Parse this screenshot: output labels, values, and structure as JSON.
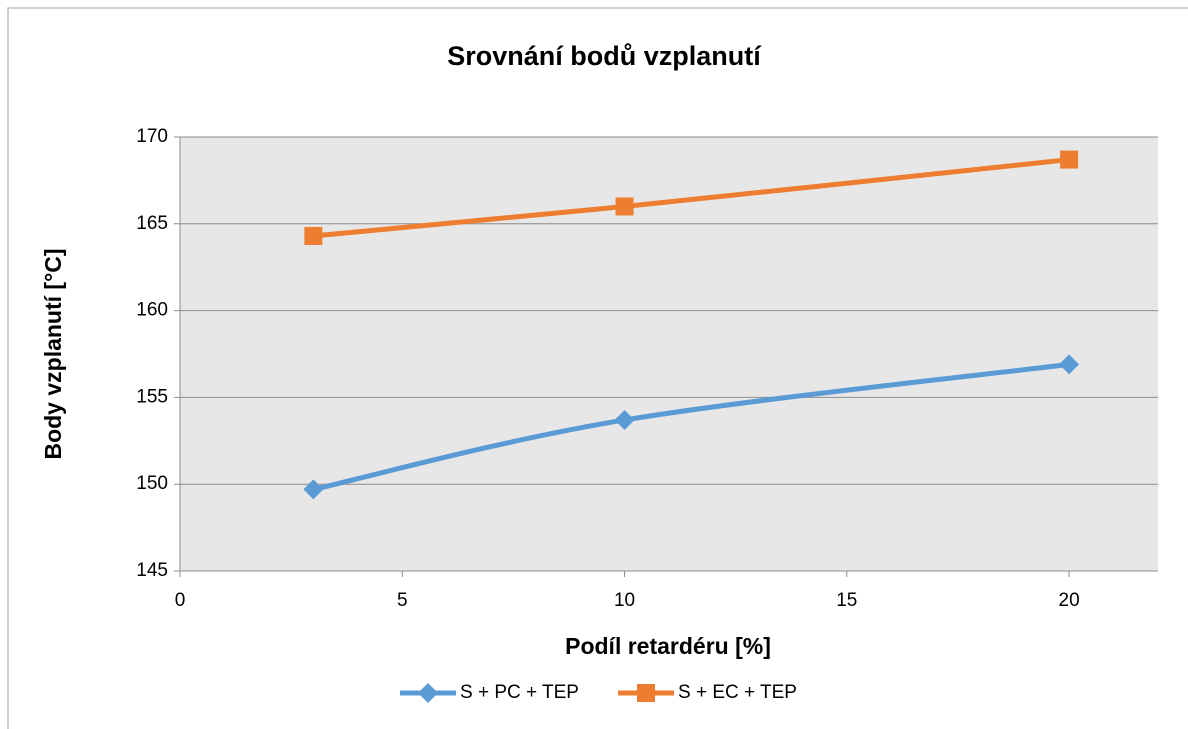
{
  "chart_data": {
    "type": "line",
    "title": "Srovnání bodů vzplanutí",
    "xlabel": "Podíl retardéru [%]",
    "ylabel": "Body vzplanutí [°C]",
    "xlim": [
      0,
      22
    ],
    "xticks": [
      0,
      5,
      10,
      15,
      20
    ],
    "ylim": [
      145,
      170
    ],
    "yticks": [
      145,
      150,
      155,
      160,
      165,
      170
    ],
    "grid": true,
    "legend": "bottom",
    "series": [
      {
        "name": "S + PC + TEP",
        "color": "#5b9bd5",
        "marker": "diamond",
        "x": [
          3,
          10,
          20
        ],
        "values": [
          149.7,
          153.7,
          156.9
        ]
      },
      {
        "name": "S + EC + TEP",
        "color": "#ed7d31",
        "marker": "square",
        "x": [
          3,
          10,
          20
        ],
        "values": [
          164.3,
          166.0,
          168.7
        ]
      }
    ]
  }
}
